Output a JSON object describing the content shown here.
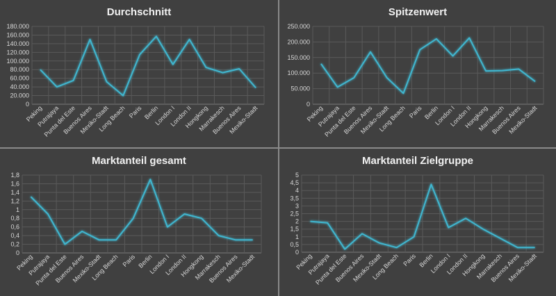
{
  "chart_data": [
    {
      "type": "line",
      "title": "Durchschnitt",
      "categories": [
        "Peking",
        "Putrajaya",
        "Punta del Este",
        "Buenos Aires",
        "Mexiko-Stadt",
        "Long Beach",
        "Paris",
        "Berlin",
        "London I",
        "London II",
        "Hongkong",
        "Marrakesch",
        "Buenos Aires",
        "Mexiko-Stadt"
      ],
      "values": [
        80000,
        40000,
        55000,
        150000,
        52000,
        20000,
        115000,
        157000,
        92000,
        150000,
        85000,
        73000,
        82000,
        38000
      ],
      "yticks": [
        "0",
        "20.000",
        "40.000",
        "60.000",
        "80.000",
        "100.000",
        "120.000",
        "140.000",
        "160.000",
        "180.000"
      ],
      "ylim": [
        0,
        180000
      ],
      "grid": true,
      "color": "#3fb6cf"
    },
    {
      "type": "line",
      "title": "Spitzenwert",
      "categories": [
        "Peking",
        "Putrajaya",
        "Punta del Este",
        "Buenos Aires",
        "Mexiko-Stadt",
        "Long Beach",
        "Paris",
        "Berlin",
        "London I",
        "London II",
        "Hongkong",
        "Marrakesch",
        "Buenos Aires",
        "Mexiko-Stadt"
      ],
      "values": [
        130000,
        55000,
        85000,
        168000,
        85000,
        35000,
        175000,
        210000,
        155000,
        213000,
        107000,
        108000,
        113000,
        73000
      ],
      "yticks": [
        "0",
        "50.000",
        "100.000",
        "150.000",
        "200.000",
        "250.000"
      ],
      "ylim": [
        0,
        250000
      ],
      "grid": true,
      "color": "#3fb6cf"
    },
    {
      "type": "line",
      "title": "Marktanteil gesamt",
      "categories": [
        "Peking",
        "Putrajaya",
        "Punta del Este",
        "Buenos Aires",
        "Mexiko-Stadt",
        "Long Beach",
        "Paris",
        "Berlin",
        "London I",
        "London II",
        "Hongkong",
        "Marrakesch",
        "Buenos Aires",
        "Mexiko-Stadt"
      ],
      "values": [
        1.3,
        0.9,
        0.2,
        0.5,
        0.3,
        0.3,
        0.8,
        1.7,
        0.6,
        0.9,
        0.8,
        0.4,
        0.3,
        0.3
      ],
      "yticks": [
        "0",
        "0,2",
        "0,4",
        "0,6",
        "0,8",
        "1",
        "1,2",
        "1,4",
        "1,6",
        "1,8"
      ],
      "ylim": [
        0,
        1.8
      ],
      "grid": true,
      "color": "#3fb6cf"
    },
    {
      "type": "line",
      "title": "Marktanteil Zielgruppe",
      "categories": [
        "Peking",
        "Putrajaya",
        "Punta del Este",
        "Buenos Aires",
        "Mexiko-Stadt",
        "Long Beach",
        "Paris",
        "Berlin",
        "London I",
        "London II",
        "Hongkong",
        "Marrakesch",
        "Buenos Aires",
        "Mexiko-Stadt"
      ],
      "values": [
        2.0,
        1.9,
        0.2,
        1.2,
        0.6,
        0.3,
        1.0,
        4.4,
        1.6,
        2.2,
        1.5,
        0.9,
        0.3,
        0.3
      ],
      "yticks": [
        "0",
        "0,5",
        "1",
        "1,5",
        "2",
        "2,5",
        "3",
        "3,5",
        "4",
        "4,5",
        "5"
      ],
      "ylim": [
        0,
        5
      ],
      "grid": true,
      "color": "#3fb6cf"
    }
  ]
}
